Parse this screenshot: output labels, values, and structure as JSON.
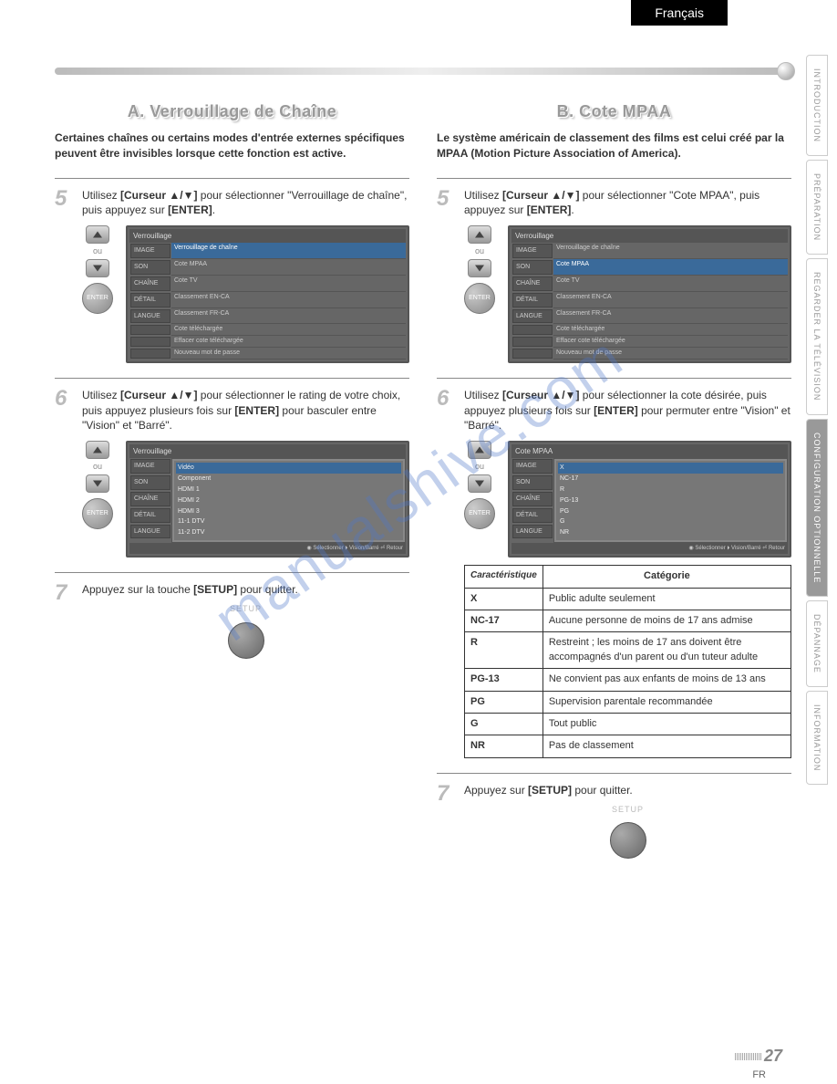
{
  "language_tab": "Français",
  "side_tabs": [
    {
      "label": "INTRODUCTION",
      "active": false
    },
    {
      "label": "PRÉPARATION",
      "active": false
    },
    {
      "label": "REGARDER LA TÉLÉVISION",
      "active": false
    },
    {
      "label": "CONFIGURATION OPTIONNELLE",
      "active": true
    },
    {
      "label": "DÉPANNAGE",
      "active": false
    },
    {
      "label": "INFORMATION",
      "active": false
    }
  ],
  "watermark": "manualshive.com",
  "page_number": "27",
  "page_lang": "FR",
  "sectionA": {
    "title": "A. Verrouillage de Chaîne",
    "intro": "Certaines chaînes ou certains modes d'entrée externes spécifiques peuvent être invisibles lorsque cette fonction est active.",
    "step5_num": "5",
    "step5_pre": "Utilisez ",
    "step5_bold1": "[Curseur ▲/▼]",
    "step5_mid": " pour sélectionner \"Verrouillage de chaîne\", puis appuyez sur ",
    "step5_bold2": "[ENTER]",
    "step5_end": ".",
    "step6_num": "6",
    "step6_pre": "Utilisez ",
    "step6_bold1": "[Curseur ▲/▼]",
    "step6_mid": " pour sélectionner le rating de votre choix, puis appuyez plusieurs fois sur ",
    "step6_bold2": "[ENTER]",
    "step6_end": " pour basculer entre \"Vision\" et \"Barré\".",
    "step7_num": "7",
    "step7_pre": "Appuyez sur la touche ",
    "step7_bold": "[SETUP]",
    "step7_end": " pour quitter.",
    "osd1": {
      "title": "Verrouillage",
      "left": [
        "IMAGE",
        "SON",
        "CHAÎNE",
        "DÉTAIL",
        "LANGUE"
      ],
      "right": [
        "Verrouillage de chaîne",
        "Cote MPAA",
        "Cote TV",
        "Classement EN-CA",
        "Classement FR-CA",
        "Cote téléchargée",
        "Effacer cote téléchargée",
        "Nouveau mot de passe"
      ],
      "hl_index": 0
    },
    "osd2": {
      "title": "Verrouillage",
      "left": [
        "IMAGE",
        "SON",
        "CHAÎNE",
        "DÉTAIL",
        "LANGUE"
      ],
      "list": [
        "Vidéo",
        "Component",
        "HDMI 1",
        "HDMI 2",
        "HDMI 3",
        "11-1 DTV",
        "11-2 DTV"
      ],
      "footer": "◉ Sélectionner ⏵ Vision/Barré ⏎ Retour"
    }
  },
  "sectionB": {
    "title": "B. Cote MPAA",
    "intro": "Le système américain de classement des films est celui créé par la MPAA (Motion Picture Association of America).",
    "step5_num": "5",
    "step5_pre": "Utilisez ",
    "step5_bold1": "[Curseur ▲/▼]",
    "step5_mid": " pour sélectionner \"Cote MPAA\", puis appuyez sur ",
    "step5_bold2": "[ENTER]",
    "step5_end": ".",
    "step6_num": "6",
    "step6_pre": "Utilisez ",
    "step6_bold1": "[Curseur ▲/▼]",
    "step6_mid": " pour sélectionner la cote désirée, puis appuyez plusieurs fois sur ",
    "step6_bold2": "[ENTER]",
    "step6_end": " pour permuter entre \"Vision\" et \"Barré\".",
    "step7_num": "7",
    "step7_pre": "Appuyez sur ",
    "step7_bold": "[SETUP]",
    "step7_end": " pour quitter.",
    "osd1": {
      "title": "Verrouillage",
      "left": [
        "IMAGE",
        "SON",
        "CHAÎNE",
        "DÉTAIL",
        "LANGUE"
      ],
      "right": [
        "Verrouillage de chaîne",
        "Cote MPAA",
        "Cote TV",
        "Classement EN-CA",
        "Classement FR-CA",
        "Cote téléchargée",
        "Effacer cote téléchargée",
        "Nouveau mot de passe"
      ],
      "hl_index": 1
    },
    "osd2": {
      "title": "Cote MPAA",
      "left": [
        "IMAGE",
        "SON",
        "CHAÎNE",
        "DÉTAIL",
        "LANGUE"
      ],
      "list": [
        "X",
        "NC-17",
        "R",
        "PG-13",
        "PG",
        "G",
        "NR"
      ],
      "footer": "◉ Sélectionner ⏵ Vision/Barré ⏎ Retour"
    },
    "table": {
      "head1": "Caractéristique",
      "head2": "Catégorie",
      "rows": [
        {
          "code": "X",
          "desc": "Public adulte seulement"
        },
        {
          "code": "NC-17",
          "desc": "Aucune personne de moins de 17 ans admise"
        },
        {
          "code": "R",
          "desc": "Restreint ; les moins de 17 ans doivent être accompagnés d'un parent ou d'un tuteur adulte"
        },
        {
          "code": "PG-13",
          "desc": "Ne convient pas aux enfants de moins de 13 ans"
        },
        {
          "code": "PG",
          "desc": "Supervision parentale recommandée"
        },
        {
          "code": "G",
          "desc": "Tout public"
        },
        {
          "code": "NR",
          "desc": "Pas de classement"
        }
      ]
    }
  },
  "labels": {
    "ou": "ou",
    "enter": "ENTER",
    "setup": "SETUP"
  }
}
